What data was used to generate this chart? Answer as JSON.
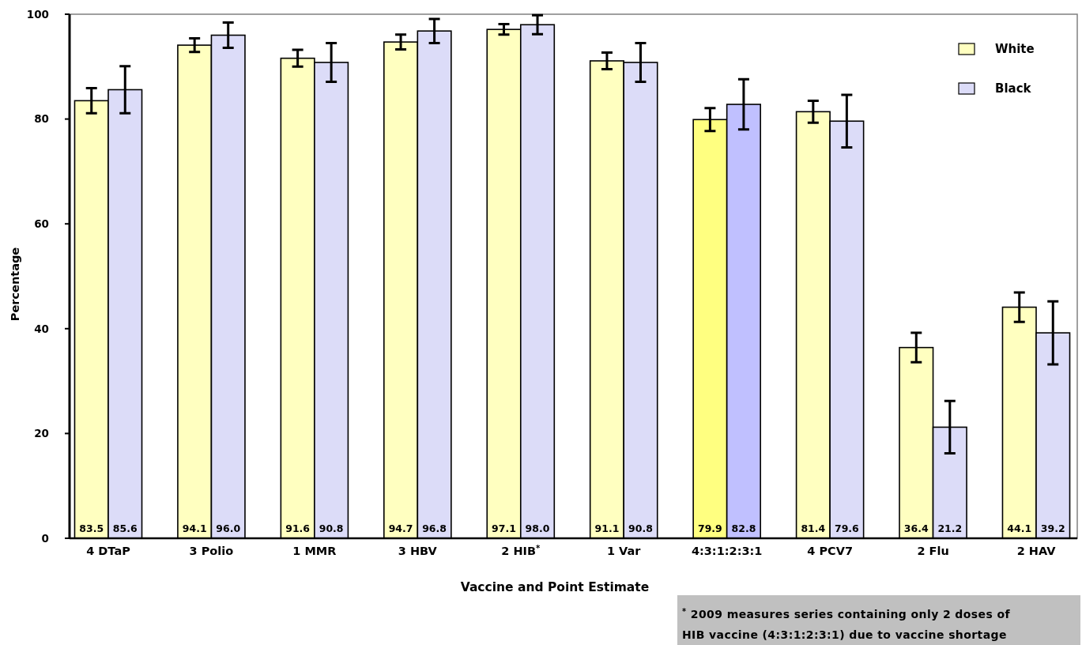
{
  "chart_data": {
    "type": "bar",
    "xlabel": "Vaccine and Point Estimate",
    "ylabel": "Percentage",
    "categories": [
      "4 DTaP",
      "3 Polio",
      "1 MMR",
      "3 HBV",
      "2 HIB$^{*}$",
      "1 Var",
      "4:3:1:2:3:1",
      "4 PCV7",
      "2 Flu",
      "2 HAV"
    ],
    "series": [
      {
        "name": "White",
        "color": "#ffffc0",
        "colors": [
          "#ffffc0",
          "#ffffc0",
          "#ffffc0",
          "#ffffc0",
          "#ffffc0",
          "#ffffc0",
          "#ffff80",
          "#ffffc0",
          "#ffffc0",
          "#ffffc0"
        ],
        "values": [
          83.5,
          94.1,
          91.6,
          94.7,
          97.1,
          91.1,
          79.9,
          81.4,
          36.4,
          44.1
        ],
        "value_labels": [
          "83.5",
          "94.1",
          "91.6",
          "94.7",
          "97.1",
          "91.1",
          "79.9",
          "81.4",
          "36.4",
          "44.1"
        ],
        "errors": [
          2.4,
          1.3,
          1.6,
          1.4,
          1.0,
          1.6,
          2.2,
          2.1,
          2.8,
          2.8
        ]
      },
      {
        "name": "Black",
        "color": "#dcdcf8",
        "colors": [
          "#dcdcf8",
          "#dcdcf8",
          "#dcdcf8",
          "#dcdcf8",
          "#dcdcf8",
          "#dcdcf8",
          "#c0c0ff",
          "#dcdcf8",
          "#dcdcf8",
          "#dcdcf8"
        ],
        "values": [
          85.6,
          96.0,
          90.8,
          96.8,
          98.0,
          90.8,
          82.8,
          79.6,
          21.2,
          39.2
        ],
        "value_labels": [
          "85.6",
          "96.0",
          "90.8",
          "96.8",
          "98.0",
          "90.8",
          "82.8",
          "79.6",
          "21.2",
          "39.2"
        ],
        "errors": [
          4.5,
          2.4,
          3.7,
          2.3,
          1.8,
          3.7,
          4.8,
          5.0,
          5.0,
          6.0
        ]
      }
    ],
    "ylim": [
      0,
      100
    ],
    "yticks": [
      0,
      20,
      40,
      60,
      80,
      100
    ],
    "legend": "top right",
    "annotations": [
      "$^{*}$ 2009 measures series containing only 2 doses of HIB vaccine (4:3:1:2:3:1) due to vaccine shortage"
    ]
  }
}
